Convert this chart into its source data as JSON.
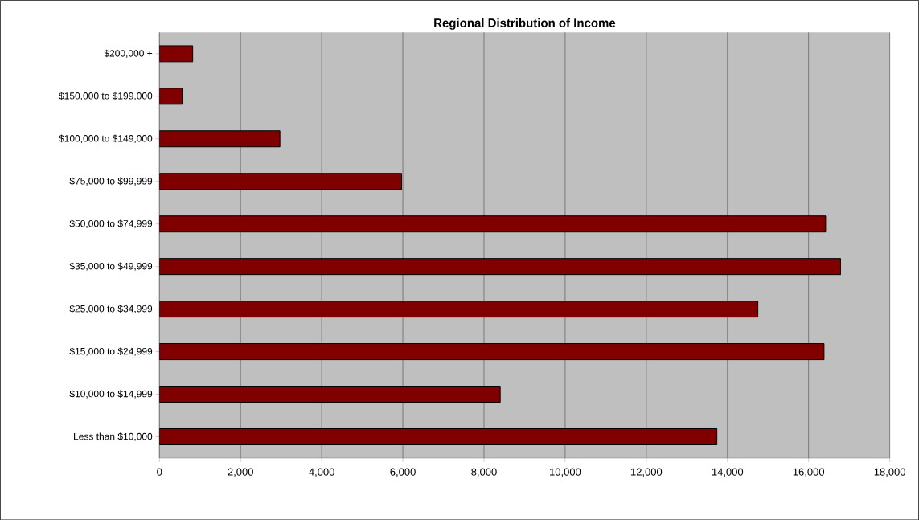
{
  "chart_data": {
    "type": "bar",
    "orientation": "horizontal",
    "title": "Regional Distribution of Income",
    "categories": [
      "$200,000 +",
      "$150,000 to $199,000",
      "$100,000 to $149,000",
      "$75,000 to $99,999",
      "$50,000 to $74,999",
      "$35,000 to $49,999",
      "$25,000 to $34,999",
      "$15,000 to $24,999",
      "$10,000 to $14,999",
      "Less than $10,000"
    ],
    "values": [
      820,
      560,
      2970,
      5970,
      16420,
      16790,
      14750,
      16380,
      8400,
      13740
    ],
    "color": "#800000",
    "xlim": [
      0,
      18000
    ],
    "xticks": [
      {
        "value": 0,
        "label": "0"
      },
      {
        "value": 2000,
        "label": "2,000"
      },
      {
        "value": 4000,
        "label": "4,000"
      },
      {
        "value": 6000,
        "label": "6,000"
      },
      {
        "value": 8000,
        "label": "8,000"
      },
      {
        "value": 10000,
        "label": "10,000"
      },
      {
        "value": 12000,
        "label": "12,000"
      },
      {
        "value": 14000,
        "label": "14,000"
      },
      {
        "value": 16000,
        "label": "16,000"
      },
      {
        "value": 18000,
        "label": "18,000"
      }
    ],
    "grid": "x"
  }
}
